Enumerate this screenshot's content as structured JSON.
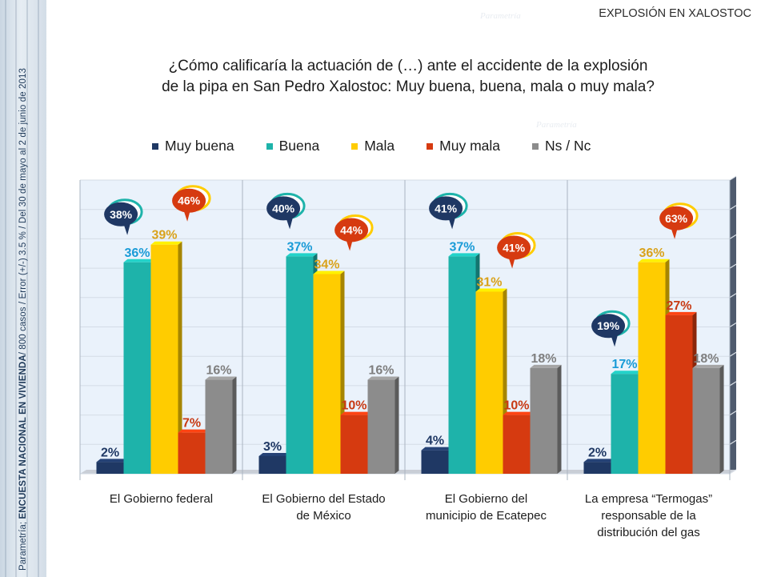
{
  "header": {
    "title": "EXPLOSIÓN EN XALOSTOC"
  },
  "question": {
    "line1": "¿Cómo calificaría la actuación de (…) ante el accidente de la explosión",
    "line2": "de la pipa en San Pedro Xalostoc: Muy buena, buena, mala o muy mala?"
  },
  "sidebar": {
    "source": "Parametría;",
    "survey": "ENCUESTA NACIONAL EN VIVIENDA",
    "details": " / 800 casos / Error (+/-) 3.5 % / Del 30 de mayo al 2  de junio de 2013"
  },
  "watermark": {
    "text": "Parametría"
  },
  "colors": {
    "muy_buena": "#1f3864",
    "buena": "#1eb3aa",
    "mala": "#ffcc00",
    "muy_mala": "#d63a10",
    "ns_nc": "#8c8c8c",
    "muy_buena_label": "#1f3864",
    "buena_label": "#1a9bd7",
    "mala_label": "#d9a21b",
    "muy_mala_label": "#c83a14",
    "ns_nc_label": "#7f7f7f"
  },
  "chart_data": {
    "type": "bar",
    "title": "",
    "xlabel": "",
    "ylabel": "",
    "ylim": [
      0,
      50
    ],
    "grid": true,
    "legend_position": "top",
    "categories": [
      "El Gobierno federal",
      "El Gobierno del Estado de México",
      "El Gobierno del municipio de Ecatepec",
      "La empresa “Termogas” responsable de la distribución del gas"
    ],
    "category_lines": [
      [
        "El Gobierno federal"
      ],
      [
        "El Gobierno del Estado",
        "de México"
      ],
      [
        "El Gobierno del",
        "municipio de Ecatepec"
      ],
      [
        "La empresa “Termogas”",
        "responsable de la",
        "distribución del gas"
      ]
    ],
    "series": [
      {
        "name": "Muy buena",
        "values": [
          2,
          3,
          4,
          2
        ]
      },
      {
        "name": "Buena",
        "values": [
          36,
          37,
          37,
          17
        ]
      },
      {
        "name": "Mala",
        "values": [
          39,
          34,
          31,
          36
        ]
      },
      {
        "name": "Muy mala",
        "values": [
          7,
          10,
          10,
          27
        ]
      },
      {
        "name": "Ns / Nc",
        "values": [
          16,
          16,
          18,
          18
        ]
      }
    ],
    "bubbles": [
      {
        "positive": "38%",
        "negative": "46%"
      },
      {
        "positive": "40%",
        "negative": "44%"
      },
      {
        "positive": "41%",
        "negative": "41%"
      },
      {
        "positive": "19%",
        "negative": "63%"
      }
    ]
  }
}
